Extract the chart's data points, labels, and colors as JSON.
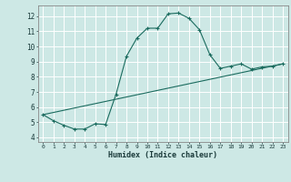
{
  "xlabel": "Humidex (Indice chaleur)",
  "ylabel": "",
  "background_color": "#cde8e5",
  "grid_color": "#ffffff",
  "line_color": "#1a6b5e",
  "curve1_x": [
    0,
    1,
    2,
    3,
    4,
    5,
    6,
    7,
    8,
    9,
    10,
    11,
    12,
    13,
    14,
    15,
    16,
    17,
    18,
    19,
    20,
    21,
    22,
    23
  ],
  "curve1_y": [
    5.5,
    5.1,
    4.8,
    4.55,
    4.55,
    4.9,
    4.85,
    6.85,
    9.35,
    10.55,
    11.2,
    11.2,
    12.15,
    12.2,
    11.85,
    11.1,
    9.45,
    8.55,
    8.7,
    8.85,
    8.5,
    8.65,
    8.7,
    8.85
  ],
  "curve2_x": [
    0,
    23
  ],
  "curve2_y": [
    5.5,
    8.85
  ],
  "xlim": [
    -0.5,
    23.5
  ],
  "ylim": [
    3.7,
    12.7
  ],
  "yticks": [
    4,
    5,
    6,
    7,
    8,
    9,
    10,
    11,
    12
  ],
  "xticks": [
    0,
    1,
    2,
    3,
    4,
    5,
    6,
    7,
    8,
    9,
    10,
    11,
    12,
    13,
    14,
    15,
    16,
    17,
    18,
    19,
    20,
    21,
    22,
    23
  ]
}
